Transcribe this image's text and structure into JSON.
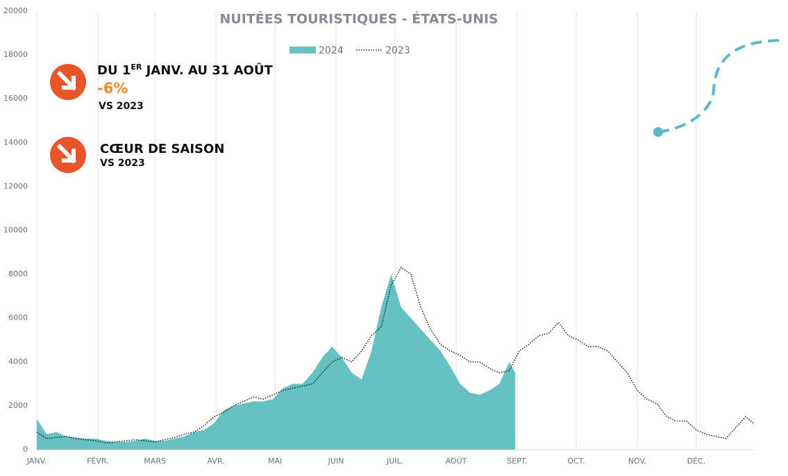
{
  "chart_data": {
    "type": "area-line",
    "title": "NUITÉES TOURISTIQUES - ÉTATS-UNIS",
    "xlim": [
      0,
      365
    ],
    "xticks": [
      {
        "value": 0,
        "label": "JANV."
      },
      {
        "value": 31,
        "label": "FÉVR."
      },
      {
        "value": 60,
        "label": "MARS"
      },
      {
        "value": 91,
        "label": "AVR."
      },
      {
        "value": 121,
        "label": "MAI"
      },
      {
        "value": 152,
        "label": "JUIN"
      },
      {
        "value": 182,
        "label": "JUIL."
      },
      {
        "value": 213,
        "label": "AOÛT"
      },
      {
        "value": 244,
        "label": "SEPT."
      },
      {
        "value": 274,
        "label": "OCT."
      },
      {
        "value": 305,
        "label": "NOV."
      },
      {
        "value": 335,
        "label": "DÉC."
      }
    ],
    "ylim": [
      0,
      20000
    ],
    "yticks": [
      0,
      2000,
      4000,
      6000,
      8000,
      10000,
      12000,
      14000,
      16000,
      18000,
      20000
    ],
    "grid": "x",
    "series": [
      {
        "name": "2024",
        "style": "area",
        "color": "#66c2c2",
        "x": [
          0,
          5,
          10,
          15,
          20,
          25,
          30,
          35,
          40,
          45,
          50,
          55,
          60,
          65,
          70,
          75,
          80,
          85,
          90,
          95,
          100,
          105,
          110,
          115,
          120,
          125,
          130,
          135,
          140,
          145,
          150,
          155,
          160,
          165,
          170,
          175,
          180,
          185,
          190,
          195,
          200,
          205,
          210,
          215,
          220,
          225,
          230,
          235,
          240,
          243
        ],
        "values": [
          1400,
          700,
          800,
          600,
          550,
          500,
          500,
          400,
          350,
          350,
          400,
          500,
          400,
          400,
          500,
          600,
          800,
          900,
          1200,
          1800,
          2000,
          2100,
          2200,
          2200,
          2300,
          2800,
          3000,
          3000,
          3500,
          4200,
          4700,
          4200,
          3500,
          3200,
          4500,
          6500,
          8000,
          6500,
          6000,
          5500,
          5000,
          4500,
          3800,
          3000,
          2600,
          2500,
          2700,
          3000,
          4000,
          3500
        ]
      },
      {
        "name": "2023",
        "style": "dotted",
        "color": "#222222",
        "x": [
          0,
          5,
          10,
          15,
          20,
          25,
          30,
          35,
          40,
          45,
          50,
          55,
          60,
          65,
          70,
          75,
          80,
          85,
          90,
          95,
          100,
          105,
          110,
          115,
          120,
          125,
          130,
          135,
          140,
          145,
          150,
          155,
          160,
          165,
          170,
          175,
          180,
          185,
          190,
          195,
          200,
          205,
          210,
          215,
          220,
          225,
          230,
          235,
          240,
          245,
          250,
          255,
          260,
          265,
          270,
          275,
          280,
          285,
          290,
          295,
          300,
          305,
          310,
          315,
          320,
          325,
          330,
          335,
          340,
          345,
          350,
          355,
          360,
          364
        ],
        "values": [
          800,
          500,
          550,
          600,
          500,
          450,
          400,
          300,
          350,
          400,
          450,
          400,
          350,
          450,
          550,
          700,
          800,
          1100,
          1500,
          1700,
          2000,
          2200,
          2400,
          2300,
          2500,
          2700,
          2800,
          2900,
          3000,
          3500,
          4000,
          4200,
          4000,
          4500,
          5200,
          5600,
          7500,
          8300,
          8000,
          6500,
          5500,
          4800,
          4500,
          4300,
          4000,
          4000,
          3700,
          3500,
          3600,
          4500,
          4800,
          5200,
          5300,
          5800,
          5200,
          5000,
          4700,
          4700,
          4500,
          4000,
          3500,
          2700,
          2300,
          2100,
          1500,
          1300,
          1300,
          900,
          700,
          600,
          500,
          1000,
          1500,
          1200
        ]
      }
    ],
    "annotations": {
      "period": [
        "DU 1",
        "ER",
        " JANV. AU 31 AOÛT"
      ],
      "change": "-6%",
      "vs1": "VS 2023",
      "season": "CŒUR DE SAISON",
      "vs2": "VS 2023"
    }
  }
}
